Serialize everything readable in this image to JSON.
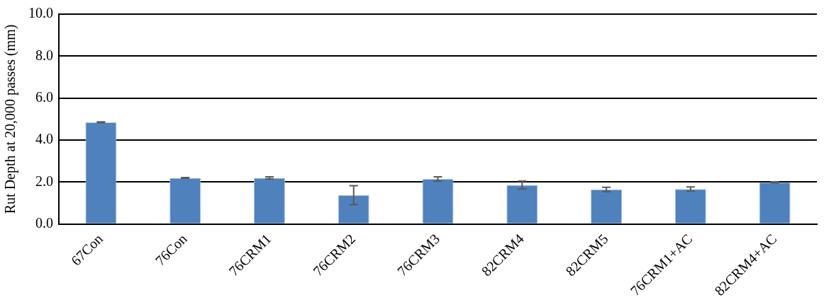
{
  "chart_data": {
    "type": "bar",
    "ylabel": "Rut Depth at 20,000 passes (mm)",
    "categories": [
      "67Con",
      "76Con",
      "76CRM1",
      "76CRM2",
      "76CRM3",
      "82CRM4",
      "82CRM5",
      "76CRM1+AC",
      "82CRM4+AC"
    ],
    "values": [
      4.85,
      2.2,
      2.2,
      1.38,
      2.15,
      1.86,
      1.65,
      1.67,
      1.99
    ],
    "errors": [
      0.02,
      0.02,
      0.05,
      0.45,
      0.1,
      0.19,
      0.1,
      0.1,
      0.02
    ],
    "color": "#4f81bd",
    "ylim": [
      0,
      10
    ],
    "yticks": [
      {
        "value": 0,
        "label": "0.0"
      },
      {
        "value": 2,
        "label": "2.0"
      },
      {
        "value": 4,
        "label": "4.0"
      },
      {
        "value": 6,
        "label": "6.0"
      },
      {
        "value": 8,
        "label": "8.0"
      },
      {
        "value": 10,
        "label": "10.0"
      }
    ],
    "grid": "y",
    "legend": false
  }
}
